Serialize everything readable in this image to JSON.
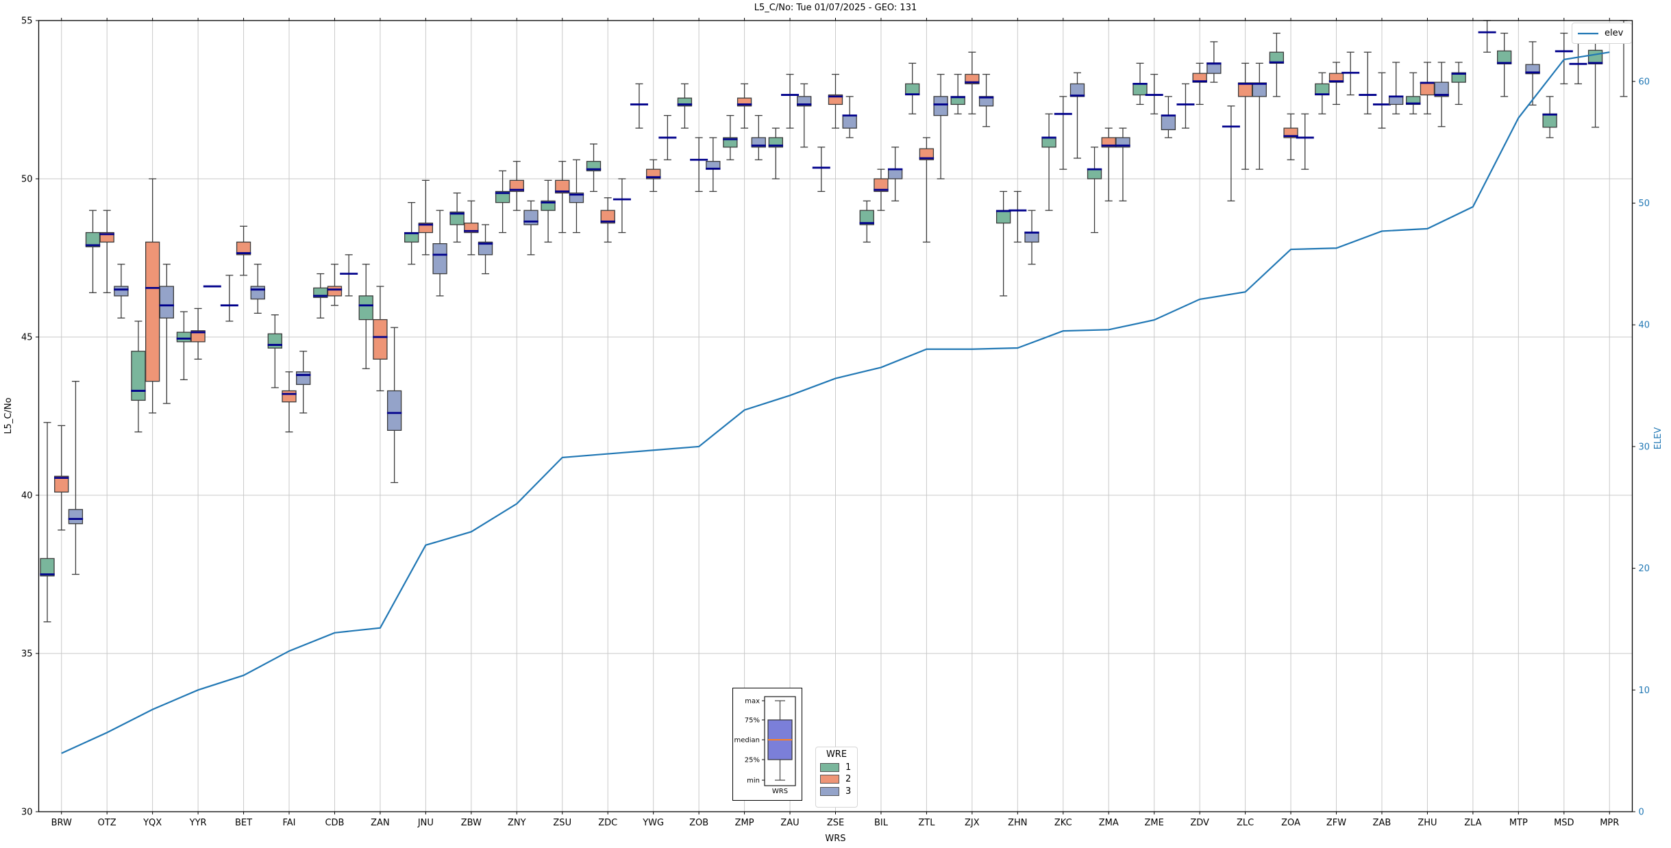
{
  "chart_data": {
    "type": "boxplot+line",
    "title": "L5_C/No: Tue 01/07/2025 - GEO: 131",
    "xlabel": "WRS",
    "ylabel": "L5_C/No",
    "y2label": "ELEV",
    "ylim": [
      30,
      55
    ],
    "y2lim": [
      0,
      65
    ],
    "yticks": [
      30,
      35,
      40,
      45,
      50,
      55
    ],
    "y2ticks": [
      0,
      10,
      20,
      30,
      40,
      50,
      60
    ],
    "grid": true,
    "categories": [
      "BRW",
      "OTZ",
      "YQX",
      "YYR",
      "BET",
      "FAI",
      "CDB",
      "ZAN",
      "JNU",
      "ZBW",
      "ZNY",
      "ZSU",
      "ZDC",
      "YWG",
      "ZOB",
      "ZMP",
      "ZAU",
      "ZSE",
      "BIL",
      "ZTL",
      "ZJX",
      "ZHN",
      "ZKC",
      "ZMA",
      "ZME",
      "ZDV",
      "ZLC",
      "ZOA",
      "ZFW",
      "ZAB",
      "ZHU",
      "ZLA",
      "MTP",
      "MSD",
      "MPR"
    ],
    "box_stats_order": [
      "min",
      "q1",
      "median",
      "q3",
      "max"
    ],
    "series": [
      {
        "name": "1",
        "color": "#7ab69c",
        "boxes": [
          [
            36.0,
            37.45,
            37.5,
            38.0,
            42.3
          ],
          [
            46.4,
            47.85,
            47.9,
            48.3,
            49.0
          ],
          [
            42.0,
            43.0,
            43.3,
            44.55,
            45.5
          ],
          [
            43.65,
            44.85,
            44.95,
            45.15,
            45.8
          ],
          [
            45.5,
            46.0,
            46.0,
            46.0,
            46.95
          ],
          [
            43.4,
            44.65,
            44.75,
            45.1,
            45.7
          ],
          [
            45.6,
            46.25,
            46.3,
            46.55,
            47.0
          ],
          [
            44.0,
            45.55,
            46.0,
            46.3,
            47.3
          ],
          [
            47.3,
            48.0,
            48.28,
            48.3,
            49.25
          ],
          [
            48.0,
            48.55,
            48.9,
            48.95,
            49.55
          ],
          [
            48.3,
            49.25,
            49.55,
            49.6,
            50.25
          ],
          [
            48.0,
            49.0,
            49.25,
            49.3,
            49.95
          ],
          [
            49.6,
            50.25,
            50.3,
            50.55,
            51.1
          ],
          [
            51.6,
            52.35,
            52.35,
            52.35,
            53.0
          ],
          [
            51.6,
            52.3,
            52.35,
            52.55,
            53.0
          ],
          [
            50.6,
            51.0,
            51.25,
            51.3,
            52.0
          ],
          [
            50.0,
            51.0,
            51.05,
            51.3,
            51.6
          ],
          [
            49.6,
            50.35,
            50.35,
            50.35,
            51.0
          ],
          [
            48.0,
            48.55,
            48.6,
            49.0,
            49.3
          ],
          [
            52.05,
            52.65,
            52.67,
            53.0,
            53.65
          ],
          [
            52.05,
            52.35,
            52.58,
            52.6,
            53.3
          ],
          [
            46.3,
            48.6,
            48.98,
            49.0,
            49.6
          ],
          [
            49.0,
            51.0,
            51.3,
            51.3,
            52.05
          ],
          [
            48.3,
            50.0,
            50.3,
            50.3,
            51.0
          ],
          [
            52.35,
            52.65,
            53.0,
            53.0,
            53.65
          ],
          [
            51.6,
            52.35,
            52.35,
            52.35,
            53.0
          ],
          [
            49.3,
            51.65,
            51.65,
            51.65,
            52.3
          ],
          [
            52.6,
            53.65,
            53.68,
            54.0,
            54.6
          ],
          [
            52.05,
            52.65,
            52.67,
            53.0,
            53.35
          ],
          [
            52.05,
            52.65,
            52.65,
            52.65,
            54.0
          ],
          [
            52.05,
            52.35,
            52.38,
            52.6,
            53.35
          ],
          [
            52.35,
            53.05,
            53.32,
            53.35,
            53.68
          ],
          [
            52.6,
            53.63,
            53.66,
            54.04,
            54.6
          ],
          [
            51.3,
            51.63,
            52.03,
            52.05,
            52.6
          ],
          [
            51.63,
            53.63,
            53.66,
            54.06,
            54.62
          ]
        ]
      },
      {
        "name": "2",
        "color": "#ee9576",
        "boxes": [
          [
            38.9,
            40.1,
            40.55,
            40.6,
            42.2
          ],
          [
            46.4,
            48.0,
            48.25,
            48.3,
            49.0
          ],
          [
            42.6,
            43.6,
            46.55,
            48.0,
            50.0
          ],
          [
            44.3,
            44.85,
            45.15,
            45.2,
            45.9
          ],
          [
            46.95,
            47.6,
            47.65,
            48.0,
            48.5
          ],
          [
            42.0,
            42.95,
            43.2,
            43.3,
            43.9
          ],
          [
            46.0,
            46.3,
            46.5,
            46.6,
            47.3
          ],
          [
            43.3,
            44.3,
            45.0,
            45.55,
            46.6
          ],
          [
            47.6,
            48.3,
            48.55,
            48.6,
            49.95
          ],
          [
            47.6,
            48.3,
            48.35,
            48.6,
            49.3
          ],
          [
            49.0,
            49.6,
            49.65,
            49.95,
            50.55
          ],
          [
            48.3,
            49.55,
            49.6,
            49.95,
            50.55
          ],
          [
            48.0,
            48.6,
            48.65,
            49.0,
            49.4
          ],
          [
            49.6,
            50.0,
            50.05,
            50.3,
            50.6
          ],
          [
            49.6,
            50.6,
            50.6,
            50.6,
            51.3
          ],
          [
            51.6,
            52.3,
            52.35,
            52.55,
            53.0
          ],
          [
            51.6,
            52.65,
            52.65,
            52.65,
            53.3
          ],
          [
            51.6,
            52.35,
            52.6,
            52.65,
            53.3
          ],
          [
            49.0,
            49.6,
            49.65,
            50.0,
            50.3
          ],
          [
            48.0,
            50.6,
            50.65,
            50.95,
            51.3
          ],
          [
            52.05,
            53.0,
            53.05,
            53.3,
            54.0
          ],
          [
            48.0,
            49.0,
            49.0,
            49.0,
            49.6
          ],
          [
            50.3,
            52.05,
            52.05,
            52.05,
            52.6
          ],
          [
            49.3,
            51.0,
            51.05,
            51.3,
            51.6
          ],
          [
            52.05,
            52.65,
            52.65,
            52.65,
            53.3
          ],
          [
            52.35,
            53.05,
            53.08,
            53.33,
            53.65
          ],
          [
            50.3,
            52.6,
            53.0,
            53.03,
            53.65
          ],
          [
            50.6,
            51.3,
            51.35,
            51.6,
            52.05
          ],
          [
            52.35,
            53.05,
            53.08,
            53.33,
            53.68
          ],
          [
            51.6,
            52.35,
            52.35,
            52.35,
            53.35
          ],
          [
            52.05,
            52.65,
            53.03,
            53.05,
            53.68
          ],
          null,
          null,
          [
            53.0,
            54.03,
            54.03,
            54.03,
            54.6
          ],
          null
        ]
      },
      {
        "name": "3",
        "color": "#94a3c9",
        "boxes": [
          [
            37.5,
            39.1,
            39.25,
            39.55,
            43.6
          ],
          [
            45.6,
            46.3,
            46.5,
            46.6,
            47.3
          ],
          [
            42.9,
            45.6,
            46.0,
            46.6,
            47.3
          ],
          [
            46.6,
            46.6,
            46.6,
            46.6,
            46.6
          ],
          [
            45.75,
            46.2,
            46.5,
            46.6,
            47.3
          ],
          [
            42.6,
            43.5,
            43.8,
            43.9,
            44.55
          ],
          [
            46.3,
            47.0,
            47.0,
            47.0,
            47.6
          ],
          [
            40.4,
            42.05,
            42.6,
            43.3,
            45.3
          ],
          [
            46.3,
            47.0,
            47.6,
            47.95,
            49.0
          ],
          [
            47.0,
            47.6,
            47.95,
            48.0,
            48.55
          ],
          [
            47.6,
            48.55,
            48.65,
            49.0,
            49.3
          ],
          [
            48.3,
            49.25,
            49.5,
            49.55,
            50.6
          ],
          [
            48.3,
            49.35,
            49.35,
            49.35,
            50.0
          ],
          [
            50.6,
            51.3,
            51.3,
            51.3,
            52.0
          ],
          [
            49.6,
            50.3,
            50.32,
            50.55,
            51.3
          ],
          [
            50.6,
            51.0,
            51.05,
            51.3,
            52.0
          ],
          [
            51.0,
            52.3,
            52.35,
            52.6,
            53.0
          ],
          [
            51.3,
            51.6,
            52.0,
            52.0,
            52.6
          ],
          [
            49.3,
            50.0,
            50.3,
            50.3,
            51.0
          ],
          [
            50.0,
            52.0,
            52.35,
            52.6,
            53.3
          ],
          [
            51.65,
            52.3,
            52.57,
            52.6,
            53.3
          ],
          [
            47.3,
            48.0,
            48.3,
            48.3,
            49.0
          ],
          [
            50.65,
            52.6,
            52.63,
            53.0,
            53.35
          ],
          [
            49.3,
            51.0,
            51.05,
            51.3,
            51.6
          ],
          [
            51.3,
            51.55,
            52.0,
            52.0,
            52.6
          ],
          [
            53.05,
            53.33,
            53.64,
            53.66,
            54.33
          ],
          [
            50.3,
            52.6,
            53.0,
            53.03,
            53.65
          ],
          [
            50.3,
            51.3,
            51.3,
            51.3,
            52.05
          ],
          [
            52.65,
            53.35,
            53.35,
            53.35,
            54.0
          ],
          [
            52.05,
            52.35,
            52.6,
            52.6,
            53.68
          ],
          [
            51.65,
            52.6,
            52.65,
            53.05,
            53.68
          ],
          [
            54.0,
            54.63,
            54.63,
            54.63,
            55.0
          ],
          [
            52.33,
            53.32,
            53.36,
            53.61,
            54.33
          ],
          [
            53.0,
            53.63,
            53.63,
            53.63,
            54.33
          ],
          [
            52.6,
            54.33,
            54.5,
            54.65,
            55.0
          ]
        ]
      }
    ],
    "line": {
      "name": "elev",
      "color": "#2077b4",
      "values": [
        4.8,
        6.5,
        8.4,
        10.0,
        11.2,
        13.2,
        14.7,
        15.1,
        21.9,
        23.0,
        25.3,
        29.1,
        29.4,
        29.7,
        30.0,
        33.0,
        34.2,
        35.6,
        36.5,
        38.0,
        38.0,
        38.1,
        39.5,
        39.6,
        40.4,
        42.1,
        42.7,
        46.2,
        46.3,
        47.7,
        47.9,
        49.7,
        57.0,
        61.8,
        62.4
      ]
    },
    "legend_wre": {
      "title": "WRE",
      "items": [
        {
          "label": "1"
        },
        {
          "label": "2"
        },
        {
          "label": "3"
        }
      ]
    },
    "legend_elev": {
      "label": "elev"
    },
    "inset": {
      "labels": {
        "max": "max",
        "p75": "75%",
        "median": "median",
        "p25": "25%",
        "min": "min"
      },
      "xlabel": "WRS",
      "box_color": "#7b7fd9",
      "median_color": "#ff8020"
    },
    "style": {
      "median_color": "#00008b",
      "edge_color": "#3a3a3a",
      "grid_color": "#c9c9c9",
      "tick_label_color_right": "#2077b4"
    }
  }
}
